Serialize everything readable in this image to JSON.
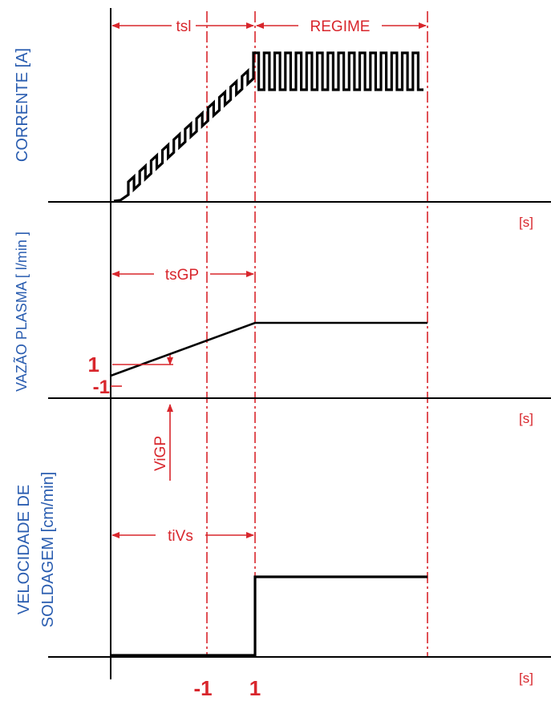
{
  "panels": {
    "current": {
      "ylabel": "CORRENTE [A]",
      "xunit": "[s]",
      "interval_labels": [
        "tsl",
        "REGIME"
      ]
    },
    "plasma": {
      "ylabel": "VAZÃO PLASMA [ l/min ]",
      "xunit": "[s]",
      "interval_label": "tsGP",
      "level_upper": "1",
      "level_lower": "-1",
      "rate_label": "ViGP"
    },
    "speed": {
      "ylabel_line1": "VELOCIDADE DE",
      "ylabel_line2": "SOLDAGEM [cm/min]",
      "xunit": "[s]",
      "interval_label": "tiVs"
    }
  },
  "time_axis": {
    "tick_minus": "-1",
    "tick_plus": "1"
  },
  "colors": {
    "annotation": "#d8262c",
    "axis_label": "#2a5db0",
    "trace": "#000000"
  }
}
